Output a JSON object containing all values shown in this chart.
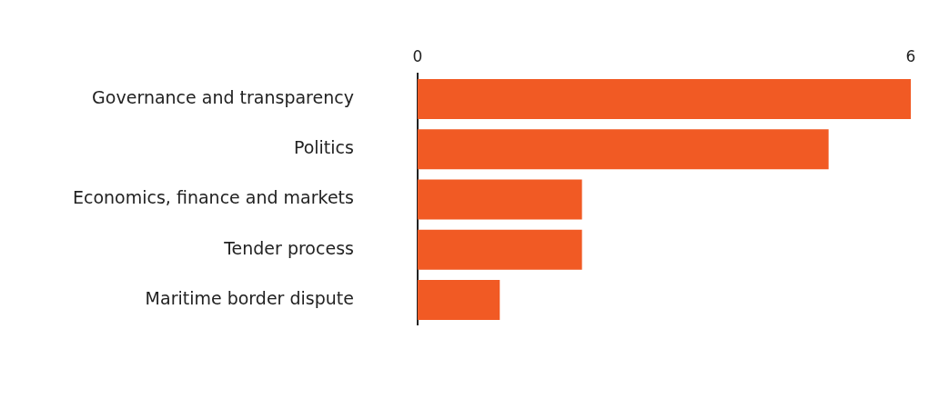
{
  "chart_data": {
    "type": "bar",
    "orientation": "horizontal",
    "categories": [
      "Governance and transparency",
      "Politics",
      "Economics, finance and markets",
      "Tender process",
      "Maritime border dispute"
    ],
    "values": [
      6,
      5,
      2,
      2,
      1
    ],
    "color": "#f15a24",
    "xlim": [
      0,
      6
    ],
    "xticks": [
      0,
      6
    ],
    "grid": false,
    "legend": false
  }
}
